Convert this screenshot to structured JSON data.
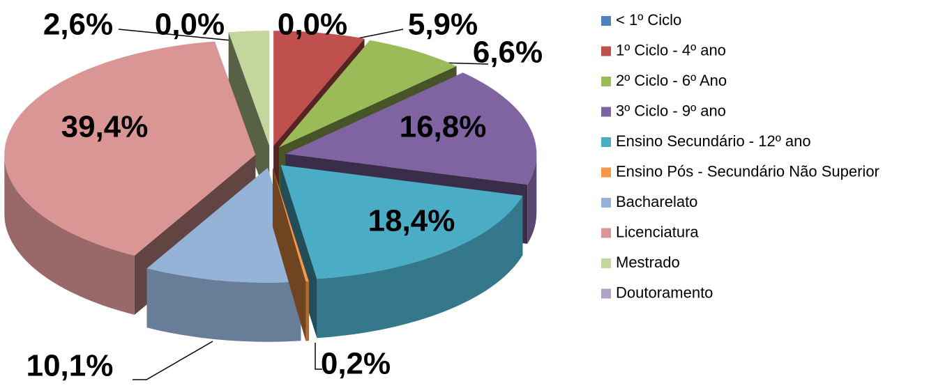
{
  "chart_data": {
    "type": "pie3d",
    "categories": [
      "< 1º Ciclo",
      "1º Ciclo - 4º ano",
      "2º Ciclo - 6º Ano",
      "3º Ciclo - 9º ano",
      "Ensino Secundário - 12º ano",
      "Ensino Pós - Secundário Não Superior",
      "Bacharelato",
      "Licenciatura",
      "Mestrado",
      "Doutoramento"
    ],
    "values": [
      0.0,
      5.9,
      6.6,
      16.8,
      18.4,
      0.2,
      10.1,
      39.4,
      2.6,
      0.0
    ],
    "value_labels": [
      "0,0%",
      "5,9%",
      "6,6%",
      "16,8%",
      "18,4%",
      "0,2%",
      "10,1%",
      "39,4%",
      "2,6%",
      "0,0%"
    ],
    "colors": [
      "#4f81bd",
      "#c0504d",
      "#9bbb59",
      "#8064a2",
      "#4bacc6",
      "#f79646",
      "#95b3d7",
      "#d99694",
      "#c3d69b",
      "#b2a1c7"
    ],
    "legend": "right"
  }
}
